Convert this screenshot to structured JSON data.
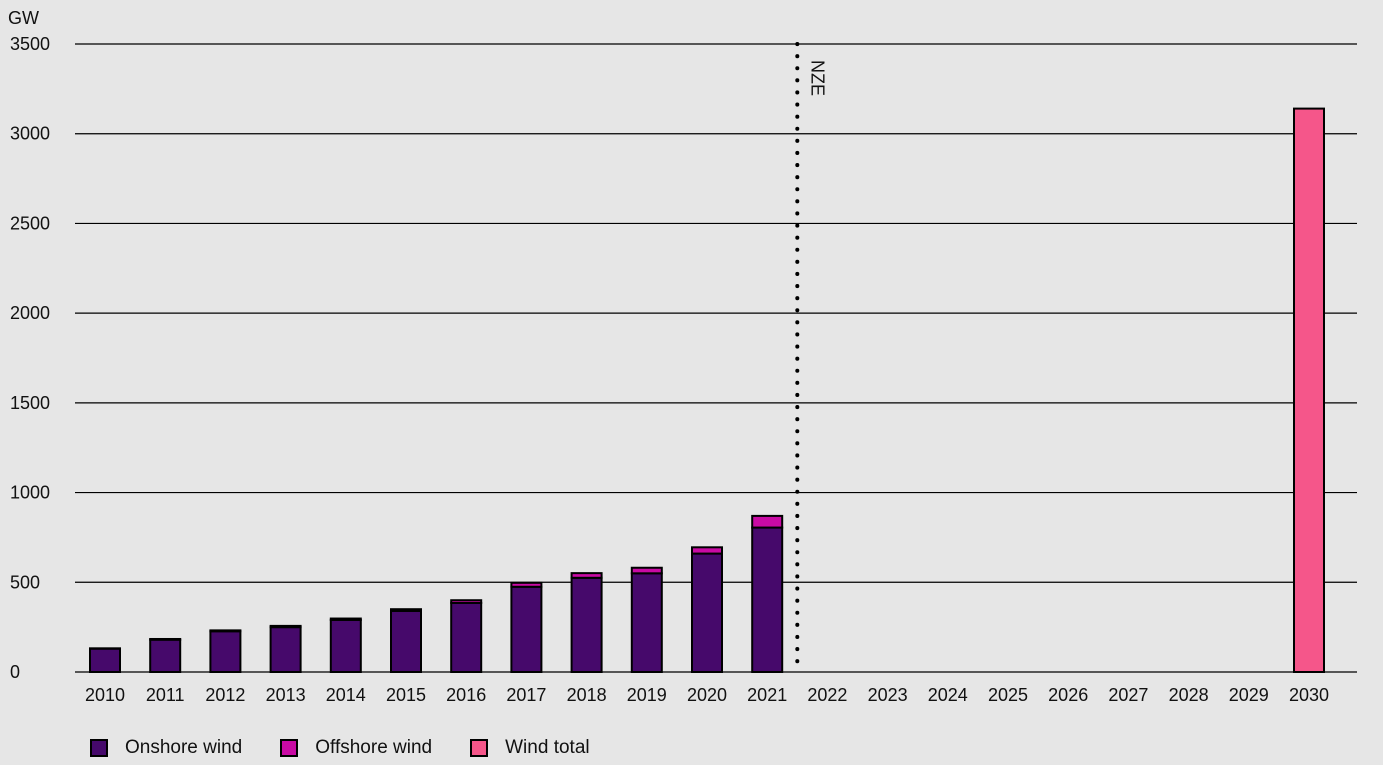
{
  "chart_data": {
    "type": "bar",
    "stacked": true,
    "ylabel": "GW",
    "ylim": [
      0,
      3500
    ],
    "yticks": [
      0,
      500,
      1000,
      1500,
      2000,
      2500,
      3000,
      3500
    ],
    "grid": true,
    "legend_position": "bottom-left",
    "categories": [
      "2010",
      "2011",
      "2012",
      "2013",
      "2014",
      "2015",
      "2016",
      "2017",
      "2018",
      "2019",
      "2020",
      "2021",
      "2022",
      "2023",
      "2024",
      "2025",
      "2026",
      "2027",
      "2028",
      "2029",
      "2030"
    ],
    "series": [
      {
        "name": "Onshore wind",
        "color": "#46096b",
        "values": [
          130,
          180,
          227,
          250,
          290,
          340,
          385,
          475,
          525,
          550,
          660,
          805,
          null,
          null,
          null,
          null,
          null,
          null,
          null,
          null,
          null
        ]
      },
      {
        "name": "Offshore wind",
        "color": "#c90aa4",
        "values": [
          2,
          4,
          5,
          7,
          8,
          10,
          15,
          22,
          26,
          31,
          35,
          65,
          null,
          null,
          null,
          null,
          null,
          null,
          null,
          null,
          null
        ]
      },
      {
        "name": "Wind total",
        "color": "#f5568a",
        "values": [
          null,
          null,
          null,
          null,
          null,
          null,
          null,
          null,
          null,
          null,
          null,
          null,
          null,
          null,
          null,
          null,
          null,
          null,
          null,
          null,
          3140
        ]
      }
    ],
    "annotations": [
      {
        "text": "NZE",
        "between": [
          "2021",
          "2022"
        ],
        "style": "dotted-vertical-line"
      }
    ]
  }
}
